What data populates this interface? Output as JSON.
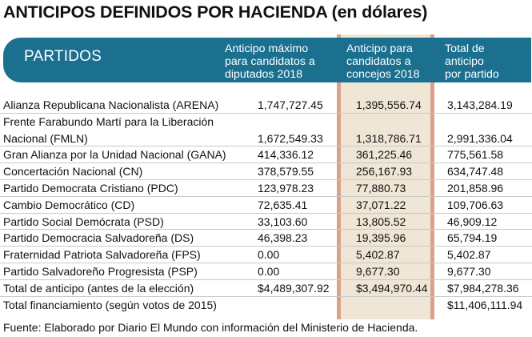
{
  "title": "ANTICIPOS DEFINIDOS POR HACIENDA (en dólares)",
  "header": {
    "partidos": "PARTIDOS",
    "col1": "Anticipo máximo\npara candidatos a\ndiputados 2018",
    "col2": "Anticipo para\ncandidatos a\nconcejos 2018",
    "col3": "Total de\nanticipo\npor partido"
  },
  "rows": [
    {
      "name": "Alianza Republicana Nacionalista (ARENA)",
      "v1": "1,747,727.45",
      "v2": "1,395,556.74",
      "v3": "3,143,284.19"
    },
    {
      "name": "Frente Farabundo Martí para la Liberación",
      "v1": "",
      "v2": "",
      "v3": ""
    },
    {
      "name": "Nacional (FMLN)",
      "v1": "1,672,549.33",
      "v2": "1,318,786.71",
      "v3": "2,991,336.04"
    },
    {
      "name": "Gran Alianza por la Unidad Nacional (GANA)",
      "v1": "414,336.12",
      "v2": "361,225.46",
      "v3": "775,561.58"
    },
    {
      "name": "Concertación Nacional (CN)",
      "v1": "378,579.55",
      "v2": "256,167.93",
      "v3": "634,747.48"
    },
    {
      "name": "Partido Democrata Cristiano (PDC)",
      "v1": "123,978.23",
      "v2": "77,880.73",
      "v3": "201,858.96"
    },
    {
      "name": "Cambio Democrático (CD)",
      "v1": "72,635.41",
      "v2": "37,071.22",
      "v3": "109,706.63"
    },
    {
      "name": "Partido Social Demócrata (PSD)",
      "v1": "33,103.60",
      "v2": "13,805.52",
      "v3": "46,909.12"
    },
    {
      "name": "Partido Democracia Salvadoreña (DS)",
      "v1": "46,398.23",
      "v2": "19,395.96",
      "v3": "65,794.19"
    },
    {
      "name": "Fraternidad Patriota Salvadoreña (FPS)",
      "v1": "0.00",
      "v2": "5,402.87",
      "v3": "5,402.87"
    },
    {
      "name": "Partido Salvadoreño Progresista (PSP)",
      "v1": "0.00",
      "v2": "9,677.30",
      "v3": "9,677.30"
    },
    {
      "name": "Total de anticipo (antes de la elección)",
      "v1": "$4,489,307.92",
      "v2": "$3,494,970.44",
      "v3": "$7,984,278.36"
    },
    {
      "name": "Total financiamiento (según votos de 2015)",
      "v1": "",
      "v2": "",
      "v3": "$11,406,111.94"
    }
  ],
  "source": "Fuente: Elaborado por Diario El Mundo con información del Ministerio de Hacienda.",
  "colors": {
    "banner": "#1b6f8f",
    "shaded_column": "#efe6d6",
    "column_border": "#d9a28b"
  }
}
